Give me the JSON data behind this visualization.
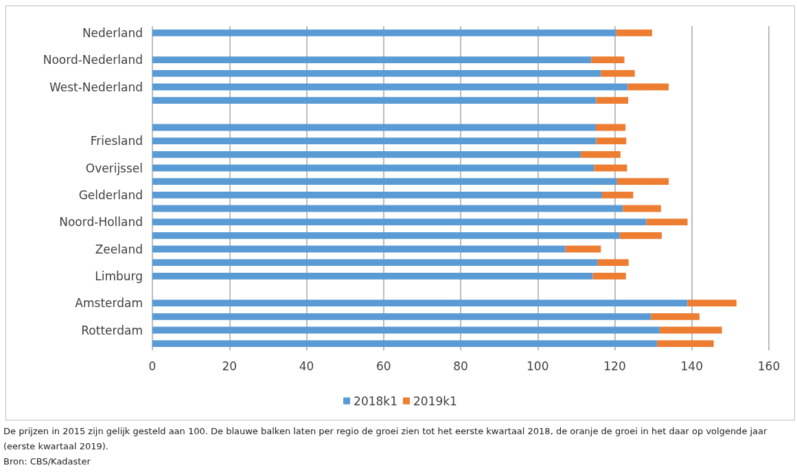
{
  "chart_data": {
    "type": "bar",
    "orientation": "horizontal",
    "stacked": true,
    "categories": [
      "Nederland",
      null,
      "Noord-Nederland",
      null,
      "West-Nederland",
      null,
      null,
      null,
      "Friesland",
      null,
      "Overijssel",
      null,
      "Gelderland",
      null,
      "Noord-Holland",
      null,
      "Zeeland",
      null,
      "Limburg",
      null,
      "Amsterdam",
      null,
      "Rotterdam",
      null
    ],
    "series": [
      {
        "name": "2018k1",
        "color": "#5b9bd5",
        "values": [
          120.4,
          null,
          113.9,
          116.4,
          123.4,
          115.2,
          null,
          115.1,
          115.2,
          111.2,
          114.6,
          120.6,
          116.7,
          122.1,
          128.2,
          121.3,
          107.2,
          115.6,
          114.3,
          null,
          138.9,
          129.4,
          131.7,
          131.0
        ]
      },
      {
        "name": "2019k1",
        "color": "#ed7d31",
        "values": [
          9.3,
          null,
          8.6,
          8.8,
          10.6,
          8.3,
          null,
          7.7,
          7.8,
          10.3,
          8.6,
          13.4,
          8.1,
          9.9,
          10.7,
          10.9,
          9.2,
          8.0,
          8.6,
          null,
          12.7,
          12.6,
          16.1,
          14.7
        ]
      }
    ],
    "xlim": [
      0,
      160
    ],
    "xticks": [
      0,
      20,
      40,
      60,
      80,
      100,
      120,
      140,
      160
    ],
    "grid": "x",
    "legend": "bottom",
    "annotations": [
      "De prijzen in 2015 zijn gelijk gesteld aan 100. De blauwe balken laten per regio de groei zien tot het eerste kwartaal 2018, de oranje de groei in het daar op volgende jaar (eerste kwartaal 2019).",
      "Bron: CBS/Kadaster"
    ]
  }
}
